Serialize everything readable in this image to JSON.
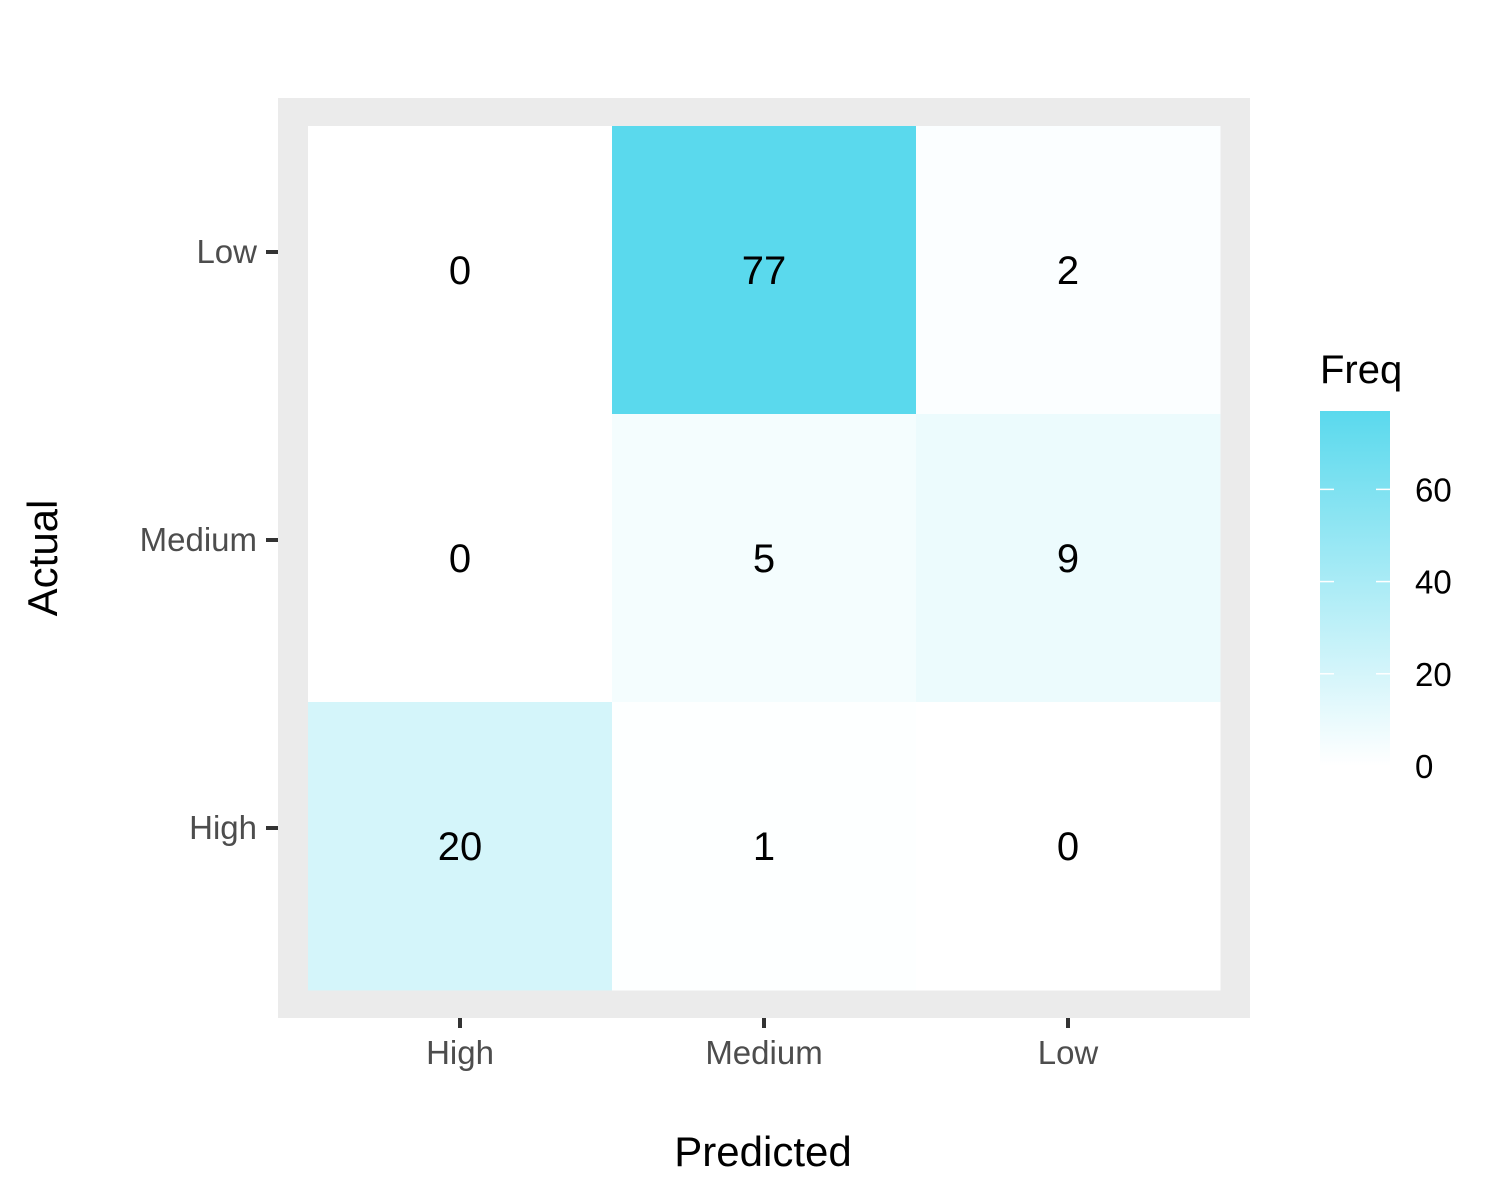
{
  "chart_data": {
    "type": "heatmap",
    "title": "",
    "xlabel": "Predicted",
    "ylabel": "Actual",
    "x_categories": [
      "High",
      "Medium",
      "Low"
    ],
    "y_categories": [
      "Low",
      "Medium",
      "High"
    ],
    "values": [
      [
        0,
        77,
        2
      ],
      [
        0,
        5,
        9
      ],
      [
        20,
        1,
        0
      ]
    ],
    "legend": {
      "title": "Freq",
      "ticks": [
        0,
        20,
        40,
        60
      ],
      "range": [
        0,
        77
      ],
      "placement": "right"
    },
    "colors": {
      "low": "#ffffff",
      "high": "#5ad9ed",
      "panel_background": "#ebebeb"
    },
    "grid": false
  }
}
